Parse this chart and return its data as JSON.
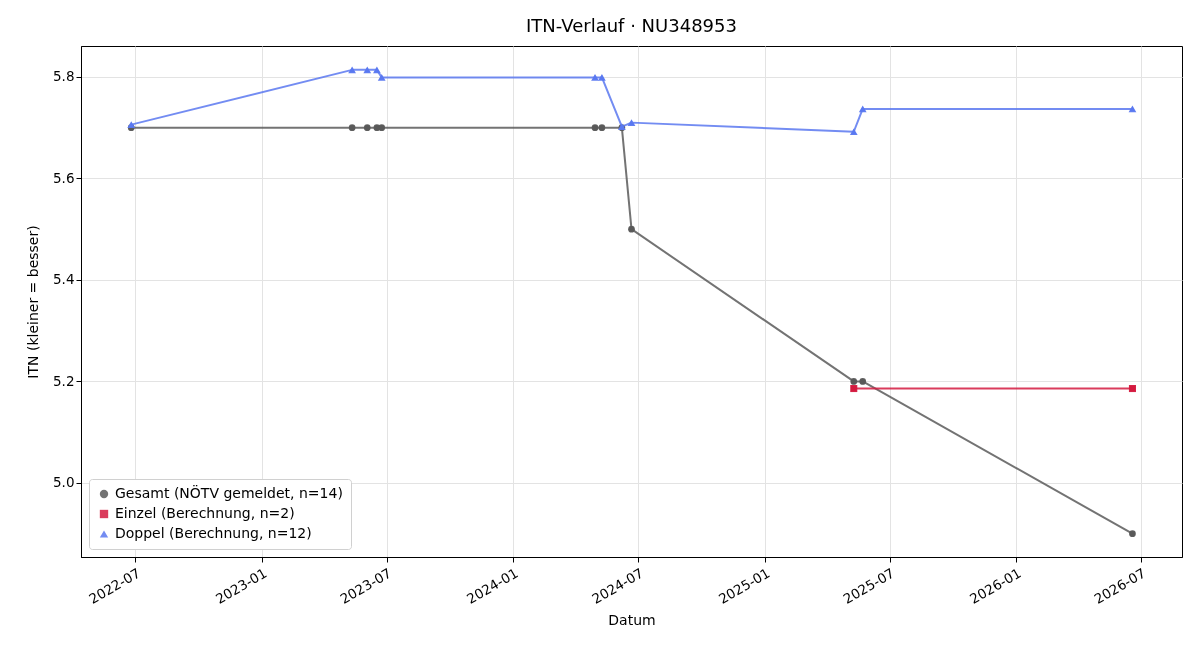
{
  "chart_data": {
    "type": "line",
    "title": "ITN-Verlauf · NU348953",
    "xlabel": "Datum",
    "ylabel": "ITN (kleiner = besser)",
    "xlim": [
      "2022-04-13",
      "2026-08-30"
    ],
    "xticks": [
      "2022-07",
      "2023-01",
      "2023-07",
      "2024-01",
      "2024-07",
      "2025-01",
      "2025-07",
      "2026-01",
      "2026-07"
    ],
    "ylim": [
      4.854,
      5.861
    ],
    "yticks": [
      {
        "value": 5.0,
        "label": "5.0"
      },
      5.2,
      5.4,
      5.6,
      5.8
    ],
    "grid": true,
    "legend": "bottom left",
    "line_style": "solid",
    "series": [
      {
        "name": "Gesamt (NÖTV gemeldet, n=14)",
        "color": "#5a5a5a",
        "marker": "circle",
        "x": [
          "2022-06-25",
          "2023-05-12",
          "2023-06-03",
          "2023-06-17",
          "2023-06-24",
          "2024-04-29",
          "2024-05-09",
          "2024-06-07",
          "2024-06-21",
          "2025-05-10",
          "2025-05-23",
          "2026-06-19"
        ],
        "values": [
          5.7,
          5.7,
          5.7,
          5.7,
          5.7,
          5.7,
          5.7,
          5.7,
          5.5,
          5.2,
          5.2,
          4.9
        ]
      },
      {
        "name": "Einzel (Berechnung, n=2)",
        "color": "#d41a3f",
        "marker": "square",
        "x": [
          "2025-05-10",
          "2026-06-19"
        ],
        "values": [
          5.186,
          5.186
        ]
      },
      {
        "name": "Doppel (Berechnung, n=12)",
        "color": "#5a78f0",
        "marker": "triangle",
        "x": [
          "2022-06-25",
          "2023-05-12",
          "2023-06-03",
          "2023-06-17",
          "2023-06-24",
          "2024-04-29",
          "2024-05-09",
          "2024-06-07",
          "2024-06-21",
          "2025-05-10",
          "2025-05-23",
          "2026-06-19"
        ],
        "values": [
          5.706,
          5.814,
          5.814,
          5.814,
          5.799,
          5.799,
          5.799,
          5.702,
          5.71,
          5.692,
          5.737,
          5.737
        ]
      }
    ]
  }
}
